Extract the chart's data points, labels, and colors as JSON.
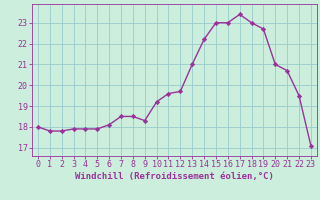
{
  "x": [
    0,
    1,
    2,
    3,
    4,
    5,
    6,
    7,
    8,
    9,
    10,
    11,
    12,
    13,
    14,
    15,
    16,
    17,
    18,
    19,
    20,
    21,
    22,
    23
  ],
  "y": [
    18.0,
    17.8,
    17.8,
    17.9,
    17.9,
    17.9,
    18.1,
    18.5,
    18.5,
    18.3,
    19.2,
    19.6,
    19.7,
    21.0,
    22.2,
    23.0,
    23.0,
    23.4,
    23.0,
    22.7,
    21.0,
    20.7,
    19.5,
    17.1
  ],
  "line_color": "#993399",
  "marker": "D",
  "markersize": 2.2,
  "linewidth": 1.0,
  "bg_color": "#cceedd",
  "grid_color": "#99cccc",
  "tick_color": "#993399",
  "label_color": "#993399",
  "xlabel": "Windchill (Refroidissement éolien,°C)",
  "xlim": [
    -0.5,
    23.5
  ],
  "ylim": [
    16.6,
    23.9
  ],
  "yticks": [
    17,
    18,
    19,
    20,
    21,
    22,
    23
  ],
  "xticks": [
    0,
    1,
    2,
    3,
    4,
    5,
    6,
    7,
    8,
    9,
    10,
    11,
    12,
    13,
    14,
    15,
    16,
    17,
    18,
    19,
    20,
    21,
    22,
    23
  ],
  "xlabel_fontsize": 6.5,
  "tick_fontsize": 6.0
}
